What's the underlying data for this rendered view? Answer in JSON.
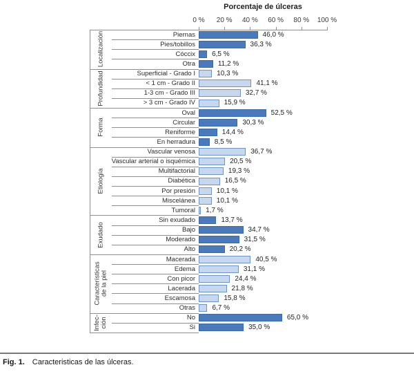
{
  "title": "Porcentaje de úlceras",
  "caption": {
    "prefix": "Fig. 1.",
    "text": "Caracteristicas de las úlceras."
  },
  "axis": {
    "tick_labels": [
      "0 %",
      "20 %",
      "40 %",
      "60 %",
      "80 %",
      "100 %"
    ]
  },
  "styles": {
    "dark": {
      "fill": "#4b7abc",
      "border": "#3c69a7"
    },
    "light": {
      "fill": "#c7d7ee",
      "border": "#6d92c4"
    },
    "line_color": "#8e8e8e",
    "text_color": "#2e2e2e"
  },
  "chart_data": {
    "type": "bar",
    "orientation": "horizontal",
    "title": "Porcentaje de úlceras",
    "xlabel": "Porcentaje de úlceras",
    "xlim": [
      0,
      100
    ],
    "unit": "%",
    "grid": false,
    "groups": [
      {
        "label": "Localización",
        "style": "dark",
        "items": [
          {
            "label": "Piernas",
            "value": 46.0,
            "display": "46,0 %"
          },
          {
            "label": "Pies/tobillos",
            "value": 36.3,
            "display": "36,3 %"
          },
          {
            "label": "Cóccix",
            "value": 6.5,
            "display": "6,5 %"
          },
          {
            "label": "Otra",
            "value": 11.2,
            "display": "11,2 %"
          }
        ]
      },
      {
        "label": "Profundidad",
        "style": "light",
        "items": [
          {
            "label": "Superficial - Grado I",
            "value": 10.3,
            "display": "10,3 %"
          },
          {
            "label": "< 1 cm - Grado II",
            "value": 41.1,
            "display": "41,1 %"
          },
          {
            "label": "1-3 cm - Grado III",
            "value": 32.7,
            "display": "32,7 %"
          },
          {
            "label": "> 3 cm - Grado IV",
            "value": 15.9,
            "display": "15,9 %"
          }
        ]
      },
      {
        "label": "Forma",
        "style": "dark",
        "items": [
          {
            "label": "Oval",
            "value": 52.5,
            "display": "52,5 %"
          },
          {
            "label": "Circular",
            "value": 30.3,
            "display": "30,3 %"
          },
          {
            "label": "Reniforme",
            "value": 14.4,
            "display": "14,4 %"
          },
          {
            "label": "En herradura",
            "value": 8.5,
            "display": "8,5 %"
          }
        ]
      },
      {
        "label": "Etiología",
        "style": "light",
        "items": [
          {
            "label": "Vascular venosa",
            "value": 36.7,
            "display": "36,7 %"
          },
          {
            "label": "Vascular arterial o isquémica",
            "value": 20.5,
            "display": "20,5 %"
          },
          {
            "label": "Multifactorial",
            "value": 19.3,
            "display": "19,3 %"
          },
          {
            "label": "Diabética",
            "value": 16.5,
            "display": "16,5 %"
          },
          {
            "label": "Por presión",
            "value": 10.1,
            "display": "10,1 %"
          },
          {
            "label": "Miscelánea",
            "value": 10.1,
            "display": "10,1 %"
          },
          {
            "label": "Tumoral",
            "value": 1.7,
            "display": "1,7 %"
          }
        ]
      },
      {
        "label": "Exudado",
        "style": "dark",
        "items": [
          {
            "label": "Sin exudado",
            "value": 13.7,
            "display": "13,7 %"
          },
          {
            "label": "Bajo",
            "value": 34.7,
            "display": "34,7 %"
          },
          {
            "label": "Moderado",
            "value": 31.5,
            "display": "31,5 %"
          },
          {
            "label": "Alto",
            "value": 20.2,
            "display": "20,2 %"
          }
        ]
      },
      {
        "label": "Características\nde la piel",
        "style": "light",
        "items": [
          {
            "label": "Macerada",
            "value": 40.5,
            "display": "40,5 %"
          },
          {
            "label": "Edema",
            "value": 31.1,
            "display": "31,1 %"
          },
          {
            "label": "Con picor",
            "value": 24.4,
            "display": "24,4 %"
          },
          {
            "label": "Lacerada",
            "value": 21.8,
            "display": "21,8 %"
          },
          {
            "label": "Escamosa",
            "value": 15.8,
            "display": "15,8 %"
          },
          {
            "label": "Otras",
            "value": 6.7,
            "display": "6,7 %"
          }
        ]
      },
      {
        "label": "Infec-\nción",
        "style": "dark",
        "items": [
          {
            "label": "No",
            "value": 65.0,
            "display": "65,0 %"
          },
          {
            "label": "Si",
            "value": 35.0,
            "display": "35,0 %"
          }
        ]
      }
    ]
  }
}
